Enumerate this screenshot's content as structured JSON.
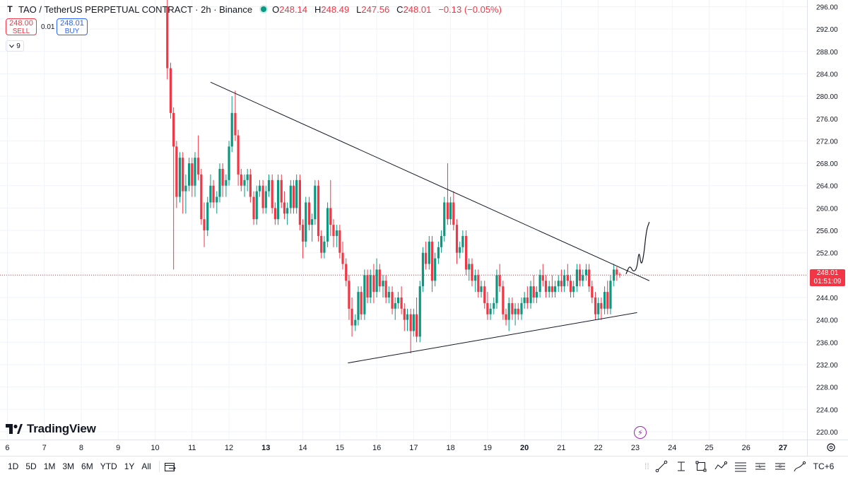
{
  "header": {
    "symbol_icon": "T",
    "title": "TAO / TetherUS PERPETUAL CONTRACT · 2h · Binance",
    "ohlc": [
      {
        "label": "O",
        "value": "248.14"
      },
      {
        "label": "H",
        "value": "248.49"
      },
      {
        "label": "L",
        "value": "247.56"
      },
      {
        "label": "C",
        "value": "248.01"
      }
    ],
    "change": "−0.13 (−0.05%)"
  },
  "trade": {
    "sell_price": "248.00",
    "sell_label": "SELL",
    "spread": "0.01",
    "buy_price": "248.01",
    "buy_label": "BUY"
  },
  "indicators_toggle": {
    "count": "9",
    "icon": "chevron-down-icon"
  },
  "price_badge": {
    "price": "248.01",
    "countdown": "01:51:09"
  },
  "logo": {
    "text": "TradingView"
  },
  "bottom_bar": {
    "ranges": [
      "1D",
      "5D",
      "1M",
      "3M",
      "6M",
      "YTD",
      "1Y",
      "All"
    ],
    "timezone": "TC+6",
    "tools": [
      "trend-line-icon",
      "cross-line-icon",
      "rectangle-icon",
      "path-icon",
      "fib-icon",
      "long-position-icon",
      "short-position-icon",
      "brush-icon"
    ]
  },
  "colors": {
    "up": "#089981",
    "down": "#f23645",
    "line": "#131722",
    "grid": "#f0f3fa",
    "axis_text": "#131722"
  },
  "chart_data": {
    "type": "candlestick",
    "title": "TAO / TetherUS PERPETUAL CONTRACT · 2h · Binance",
    "x_ticks": [
      "6",
      "7",
      "8",
      "9",
      "10",
      "11",
      "12",
      "13",
      "14",
      "15",
      "16",
      "17",
      "18",
      "19",
      "20",
      "21",
      "22",
      "23",
      "24",
      "25",
      "26",
      "27"
    ],
    "x_tick_days": [
      6,
      7,
      8,
      9,
      10,
      11,
      12,
      13,
      14,
      15,
      16,
      17,
      18,
      19,
      20,
      21,
      22,
      23,
      24,
      25,
      26,
      27
    ],
    "bold_x_ticks": [
      "13",
      "20",
      "27"
    ],
    "y_ticks": [
      220,
      224,
      228,
      232,
      236,
      240,
      244,
      248,
      252,
      256,
      260,
      264,
      268,
      272,
      276,
      280,
      284,
      288,
      292,
      296
    ],
    "ylim": [
      218.6,
      297.2
    ],
    "xlim": [
      5.8,
      27.65
    ],
    "last_price": 248.01,
    "grid": "horizontal and vertical",
    "candles": [
      {
        "d": 10.33,
        "o": 296,
        "h": 298,
        "l": 283,
        "c": 285
      },
      {
        "d": 10.42,
        "o": 285,
        "h": 286,
        "l": 276,
        "c": 277
      },
      {
        "d": 10.5,
        "o": 277,
        "h": 278,
        "l": 249,
        "c": 271
      },
      {
        "d": 10.58,
        "o": 271,
        "h": 272,
        "l": 260,
        "c": 262
      },
      {
        "d": 10.67,
        "o": 262,
        "h": 270,
        "l": 261,
        "c": 269
      },
      {
        "d": 10.75,
        "o": 269,
        "h": 270,
        "l": 259,
        "c": 263
      },
      {
        "d": 10.83,
        "o": 263,
        "h": 266,
        "l": 259,
        "c": 264
      },
      {
        "d": 10.92,
        "o": 264,
        "h": 269,
        "l": 263,
        "c": 268
      },
      {
        "d": 11.0,
        "o": 268,
        "h": 269,
        "l": 262,
        "c": 264
      },
      {
        "d": 11.08,
        "o": 264,
        "h": 270,
        "l": 262,
        "c": 269
      },
      {
        "d": 11.17,
        "o": 269,
        "h": 273,
        "l": 265,
        "c": 266
      },
      {
        "d": 11.25,
        "o": 266,
        "h": 267,
        "l": 257,
        "c": 258
      },
      {
        "d": 11.33,
        "o": 258,
        "h": 261,
        "l": 253,
        "c": 256
      },
      {
        "d": 11.42,
        "o": 256,
        "h": 262,
        "l": 255,
        "c": 261
      },
      {
        "d": 11.5,
        "o": 261,
        "h": 266,
        "l": 260,
        "c": 264
      },
      {
        "d": 11.58,
        "o": 264,
        "h": 265,
        "l": 260,
        "c": 261
      },
      {
        "d": 11.67,
        "o": 261,
        "h": 263,
        "l": 259,
        "c": 262
      },
      {
        "d": 11.75,
        "o": 262,
        "h": 268,
        "l": 261,
        "c": 267
      },
      {
        "d": 11.83,
        "o": 267,
        "h": 268,
        "l": 262,
        "c": 264
      },
      {
        "d": 11.92,
        "o": 264,
        "h": 266,
        "l": 262,
        "c": 265
      },
      {
        "d": 12.0,
        "o": 265,
        "h": 272,
        "l": 264,
        "c": 271
      },
      {
        "d": 12.08,
        "o": 271,
        "h": 280,
        "l": 270,
        "c": 277
      },
      {
        "d": 12.17,
        "o": 277,
        "h": 281,
        "l": 272,
        "c": 273
      },
      {
        "d": 12.25,
        "o": 273,
        "h": 274,
        "l": 264,
        "c": 266
      },
      {
        "d": 12.33,
        "o": 266,
        "h": 267,
        "l": 263,
        "c": 264
      },
      {
        "d": 12.42,
        "o": 264,
        "h": 266,
        "l": 262,
        "c": 265
      },
      {
        "d": 12.5,
        "o": 265,
        "h": 267,
        "l": 263,
        "c": 266
      },
      {
        "d": 12.58,
        "o": 266,
        "h": 267,
        "l": 261,
        "c": 262
      },
      {
        "d": 12.67,
        "o": 262,
        "h": 263,
        "l": 257,
        "c": 258
      },
      {
        "d": 12.75,
        "o": 258,
        "h": 264,
        "l": 257,
        "c": 263
      },
      {
        "d": 12.83,
        "o": 263,
        "h": 265,
        "l": 262,
        "c": 264
      },
      {
        "d": 12.92,
        "o": 264,
        "h": 265,
        "l": 259,
        "c": 260
      },
      {
        "d": 13.0,
        "o": 260,
        "h": 264,
        "l": 259,
        "c": 263
      },
      {
        "d": 13.08,
        "o": 263,
        "h": 266,
        "l": 262,
        "c": 265
      },
      {
        "d": 13.17,
        "o": 265,
        "h": 266,
        "l": 259,
        "c": 260
      },
      {
        "d": 13.25,
        "o": 260,
        "h": 261,
        "l": 257,
        "c": 258
      },
      {
        "d": 13.33,
        "o": 258,
        "h": 266,
        "l": 257,
        "c": 265
      },
      {
        "d": 13.42,
        "o": 265,
        "h": 266,
        "l": 260,
        "c": 261
      },
      {
        "d": 13.5,
        "o": 261,
        "h": 263,
        "l": 258,
        "c": 259
      },
      {
        "d": 13.58,
        "o": 259,
        "h": 261,
        "l": 257,
        "c": 260
      },
      {
        "d": 13.67,
        "o": 260,
        "h": 265,
        "l": 259,
        "c": 264
      },
      {
        "d": 13.75,
        "o": 264,
        "h": 265,
        "l": 259,
        "c": 260
      },
      {
        "d": 13.83,
        "o": 260,
        "h": 266,
        "l": 259,
        "c": 265
      },
      {
        "d": 13.92,
        "o": 265,
        "h": 266,
        "l": 256,
        "c": 257
      },
      {
        "d": 14.0,
        "o": 257,
        "h": 258,
        "l": 251,
        "c": 254
      },
      {
        "d": 14.08,
        "o": 254,
        "h": 262,
        "l": 253,
        "c": 261
      },
      {
        "d": 14.17,
        "o": 261,
        "h": 262,
        "l": 256,
        "c": 257
      },
      {
        "d": 14.25,
        "o": 257,
        "h": 259,
        "l": 254,
        "c": 258
      },
      {
        "d": 14.33,
        "o": 258,
        "h": 265,
        "l": 257,
        "c": 264
      },
      {
        "d": 14.42,
        "o": 264,
        "h": 265,
        "l": 254,
        "c": 255
      },
      {
        "d": 14.5,
        "o": 255,
        "h": 256,
        "l": 251,
        "c": 252
      },
      {
        "d": 14.58,
        "o": 252,
        "h": 255,
        "l": 251,
        "c": 254
      },
      {
        "d": 14.67,
        "o": 254,
        "h": 261,
        "l": 253,
        "c": 260
      },
      {
        "d": 14.75,
        "o": 260,
        "h": 265,
        "l": 255,
        "c": 257
      },
      {
        "d": 14.83,
        "o": 257,
        "h": 258,
        "l": 253,
        "c": 255
      },
      {
        "d": 14.92,
        "o": 255,
        "h": 257,
        "l": 253,
        "c": 256
      },
      {
        "d": 15.0,
        "o": 256,
        "h": 257,
        "l": 251,
        "c": 252
      },
      {
        "d": 15.08,
        "o": 252,
        "h": 254,
        "l": 249,
        "c": 250
      },
      {
        "d": 15.17,
        "o": 250,
        "h": 251,
        "l": 246,
        "c": 247
      },
      {
        "d": 15.25,
        "o": 247,
        "h": 248,
        "l": 240,
        "c": 242
      },
      {
        "d": 15.33,
        "o": 242,
        "h": 244,
        "l": 237,
        "c": 239
      },
      {
        "d": 15.42,
        "o": 239,
        "h": 241,
        "l": 238,
        "c": 240
      },
      {
        "d": 15.5,
        "o": 240,
        "h": 246,
        "l": 239,
        "c": 245
      },
      {
        "d": 15.58,
        "o": 245,
        "h": 246,
        "l": 240,
        "c": 241
      },
      {
        "d": 15.67,
        "o": 241,
        "h": 249,
        "l": 240,
        "c": 248
      },
      {
        "d": 15.75,
        "o": 248,
        "h": 249,
        "l": 243,
        "c": 244
      },
      {
        "d": 15.83,
        "o": 244,
        "h": 249,
        "l": 243,
        "c": 248
      },
      {
        "d": 15.92,
        "o": 248,
        "h": 250,
        "l": 243,
        "c": 245
      },
      {
        "d": 16.0,
        "o": 245,
        "h": 251,
        "l": 244,
        "c": 249
      },
      {
        "d": 16.08,
        "o": 249,
        "h": 250,
        "l": 245,
        "c": 246
      },
      {
        "d": 16.17,
        "o": 246,
        "h": 248,
        "l": 244,
        "c": 247
      },
      {
        "d": 16.25,
        "o": 247,
        "h": 248,
        "l": 243,
        "c": 244
      },
      {
        "d": 16.33,
        "o": 244,
        "h": 246,
        "l": 243,
        "c": 245
      },
      {
        "d": 16.42,
        "o": 245,
        "h": 246,
        "l": 241,
        "c": 242
      },
      {
        "d": 16.5,
        "o": 242,
        "h": 244,
        "l": 240,
        "c": 243
      },
      {
        "d": 16.58,
        "o": 243,
        "h": 245,
        "l": 242,
        "c": 244
      },
      {
        "d": 16.67,
        "o": 244,
        "h": 246,
        "l": 241,
        "c": 242
      },
      {
        "d": 16.75,
        "o": 242,
        "h": 243,
        "l": 238,
        "c": 240
      },
      {
        "d": 16.83,
        "o": 240,
        "h": 242,
        "l": 238,
        "c": 241
      },
      {
        "d": 16.92,
        "o": 241,
        "h": 242,
        "l": 234,
        "c": 238
      },
      {
        "d": 17.0,
        "o": 238,
        "h": 242,
        "l": 237,
        "c": 241
      },
      {
        "d": 17.08,
        "o": 241,
        "h": 244,
        "l": 236,
        "c": 237
      },
      {
        "d": 17.17,
        "o": 237,
        "h": 247,
        "l": 236,
        "c": 246
      },
      {
        "d": 17.25,
        "o": 246,
        "h": 253,
        "l": 245,
        "c": 252
      },
      {
        "d": 17.33,
        "o": 252,
        "h": 254,
        "l": 249,
        "c": 250
      },
      {
        "d": 17.42,
        "o": 250,
        "h": 255,
        "l": 249,
        "c": 254
      },
      {
        "d": 17.5,
        "o": 254,
        "h": 255,
        "l": 245,
        "c": 247
      },
      {
        "d": 17.58,
        "o": 247,
        "h": 252,
        "l": 246,
        "c": 251
      },
      {
        "d": 17.67,
        "o": 251,
        "h": 254,
        "l": 250,
        "c": 253
      },
      {
        "d": 17.75,
        "o": 253,
        "h": 256,
        "l": 252,
        "c": 255
      },
      {
        "d": 17.83,
        "o": 255,
        "h": 262,
        "l": 254,
        "c": 261
      },
      {
        "d": 17.92,
        "o": 261,
        "h": 268,
        "l": 257,
        "c": 258
      },
      {
        "d": 18.0,
        "o": 258,
        "h": 262,
        "l": 257,
        "c": 261
      },
      {
        "d": 18.08,
        "o": 261,
        "h": 263,
        "l": 256,
        "c": 257
      },
      {
        "d": 18.17,
        "o": 257,
        "h": 258,
        "l": 250,
        "c": 252
      },
      {
        "d": 18.25,
        "o": 252,
        "h": 254,
        "l": 251,
        "c": 253
      },
      {
        "d": 18.33,
        "o": 253,
        "h": 256,
        "l": 252,
        "c": 255
      },
      {
        "d": 18.42,
        "o": 255,
        "h": 256,
        "l": 248,
        "c": 249
      },
      {
        "d": 18.5,
        "o": 249,
        "h": 251,
        "l": 247,
        "c": 250
      },
      {
        "d": 18.58,
        "o": 250,
        "h": 251,
        "l": 246,
        "c": 247
      },
      {
        "d": 18.67,
        "o": 247,
        "h": 249,
        "l": 245,
        "c": 248
      },
      {
        "d": 18.75,
        "o": 248,
        "h": 249,
        "l": 244,
        "c": 245
      },
      {
        "d": 18.83,
        "o": 245,
        "h": 247,
        "l": 244,
        "c": 246
      },
      {
        "d": 18.92,
        "o": 246,
        "h": 247,
        "l": 242,
        "c": 243
      },
      {
        "d": 19.0,
        "o": 243,
        "h": 245,
        "l": 240,
        "c": 241
      },
      {
        "d": 19.08,
        "o": 241,
        "h": 243,
        "l": 240,
        "c": 242
      },
      {
        "d": 19.17,
        "o": 242,
        "h": 244,
        "l": 241,
        "c": 243
      },
      {
        "d": 19.25,
        "o": 243,
        "h": 249,
        "l": 242,
        "c": 248
      },
      {
        "d": 19.33,
        "o": 248,
        "h": 250,
        "l": 245,
        "c": 246
      },
      {
        "d": 19.42,
        "o": 246,
        "h": 247,
        "l": 240,
        "c": 241
      },
      {
        "d": 19.5,
        "o": 241,
        "h": 242,
        "l": 239,
        "c": 240
      },
      {
        "d": 19.58,
        "o": 240,
        "h": 244,
        "l": 238,
        "c": 243
      },
      {
        "d": 19.67,
        "o": 243,
        "h": 244,
        "l": 240,
        "c": 241
      },
      {
        "d": 19.75,
        "o": 241,
        "h": 243,
        "l": 239,
        "c": 242
      },
      {
        "d": 19.83,
        "o": 242,
        "h": 243,
        "l": 240,
        "c": 241
      },
      {
        "d": 19.92,
        "o": 241,
        "h": 244,
        "l": 240,
        "c": 243
      },
      {
        "d": 20.0,
        "o": 243,
        "h": 245,
        "l": 242,
        "c": 244
      },
      {
        "d": 20.08,
        "o": 244,
        "h": 246,
        "l": 242,
        "c": 243
      },
      {
        "d": 20.17,
        "o": 243,
        "h": 247,
        "l": 242,
        "c": 246
      },
      {
        "d": 20.25,
        "o": 246,
        "h": 248,
        "l": 243,
        "c": 244
      },
      {
        "d": 20.33,
        "o": 244,
        "h": 246,
        "l": 243,
        "c": 245
      },
      {
        "d": 20.42,
        "o": 245,
        "h": 249,
        "l": 244,
        "c": 248
      },
      {
        "d": 20.5,
        "o": 248,
        "h": 250,
        "l": 246,
        "c": 247
      },
      {
        "d": 20.58,
        "o": 247,
        "h": 248,
        "l": 244,
        "c": 245
      },
      {
        "d": 20.67,
        "o": 245,
        "h": 247,
        "l": 244,
        "c": 246
      },
      {
        "d": 20.75,
        "o": 246,
        "h": 248,
        "l": 244,
        "c": 245
      },
      {
        "d": 20.83,
        "o": 245,
        "h": 247,
        "l": 244,
        "c": 246
      },
      {
        "d": 20.92,
        "o": 246,
        "h": 248,
        "l": 245,
        "c": 247
      },
      {
        "d": 21.0,
        "o": 247,
        "h": 249,
        "l": 245,
        "c": 246
      },
      {
        "d": 21.08,
        "o": 246,
        "h": 249,
        "l": 245,
        "c": 248
      },
      {
        "d": 21.17,
        "o": 248,
        "h": 250,
        "l": 246,
        "c": 247
      },
      {
        "d": 21.25,
        "o": 247,
        "h": 248,
        "l": 244,
        "c": 245
      },
      {
        "d": 21.33,
        "o": 245,
        "h": 247,
        "l": 244,
        "c": 246
      },
      {
        "d": 21.42,
        "o": 246,
        "h": 250,
        "l": 245,
        "c": 249
      },
      {
        "d": 21.5,
        "o": 249,
        "h": 250,
        "l": 246,
        "c": 247
      },
      {
        "d": 21.58,
        "o": 247,
        "h": 249,
        "l": 246,
        "c": 248
      },
      {
        "d": 21.67,
        "o": 248,
        "h": 250,
        "l": 247,
        "c": 249
      },
      {
        "d": 21.75,
        "o": 249,
        "h": 250,
        "l": 245,
        "c": 246
      },
      {
        "d": 21.83,
        "o": 246,
        "h": 247,
        "l": 243,
        "c": 244
      },
      {
        "d": 21.92,
        "o": 244,
        "h": 245,
        "l": 240,
        "c": 241
      },
      {
        "d": 22.0,
        "o": 241,
        "h": 244,
        "l": 240,
        "c": 243
      },
      {
        "d": 22.08,
        "o": 243,
        "h": 244,
        "l": 240,
        "c": 242
      },
      {
        "d": 22.17,
        "o": 242,
        "h": 246,
        "l": 241,
        "c": 245
      },
      {
        "d": 22.25,
        "o": 245,
        "h": 247,
        "l": 241,
        "c": 242
      },
      {
        "d": 22.33,
        "o": 242,
        "h": 248,
        "l": 241,
        "c": 247
      },
      {
        "d": 22.42,
        "o": 247,
        "h": 250,
        "l": 246,
        "c": 249
      },
      {
        "d": 22.5,
        "o": 249,
        "h": 249.5,
        "l": 247,
        "c": 248.1
      },
      {
        "d": 22.58,
        "o": 248.14,
        "h": 248.49,
        "l": 247.56,
        "c": 248.01
      }
    ],
    "trendlines": [
      {
        "name": "descending resistance",
        "from": {
          "d": 11.5,
          "price": 282.5
        },
        "to": {
          "d": 23.38,
          "price": 247.0
        }
      },
      {
        "name": "ascending support",
        "from": {
          "d": 15.22,
          "price": 232.3
        },
        "to": {
          "d": 23.05,
          "price": 241.3
        }
      }
    ],
    "projection_path": [
      {
        "d": 22.75,
        "price": 248.2
      },
      {
        "d": 22.85,
        "price": 249.8
      },
      {
        "d": 22.95,
        "price": 248.5
      },
      {
        "d": 23.05,
        "price": 249.3
      },
      {
        "d": 23.1,
        "price": 252.5
      },
      {
        "d": 23.16,
        "price": 249.6
      },
      {
        "d": 23.23,
        "price": 251.5
      },
      {
        "d": 23.3,
        "price": 256.0
      },
      {
        "d": 23.38,
        "price": 257.5
      }
    ]
  }
}
